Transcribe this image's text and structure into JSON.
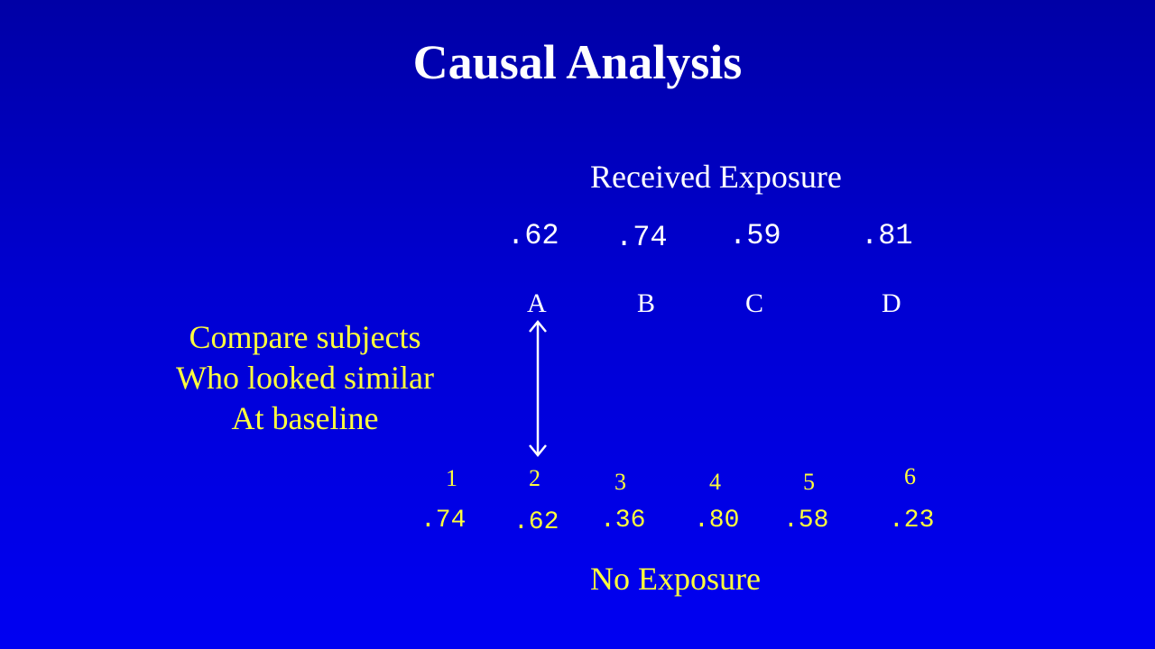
{
  "title": "Causal Analysis",
  "exposed": {
    "heading": "Received Exposure",
    "scores": [
      ".62",
      ".74",
      ".59",
      ".81"
    ],
    "subjects": [
      "A",
      "B",
      "C",
      "D"
    ]
  },
  "compare_note": {
    "lines": [
      "Compare subjects",
      "Who looked similar",
      "At baseline"
    ]
  },
  "unexposed": {
    "subjects": [
      "1",
      "2",
      "3",
      "4",
      "5",
      "6"
    ],
    "scores": [
      ".74",
      ".62",
      ".36",
      ".80",
      ".58",
      ".23"
    ],
    "heading": "No Exposure"
  },
  "colors": {
    "background_top": "#0000a6",
    "background_bottom": "#0000f2",
    "text_primary": "#ffffff",
    "text_accent": "#ffff3c"
  }
}
